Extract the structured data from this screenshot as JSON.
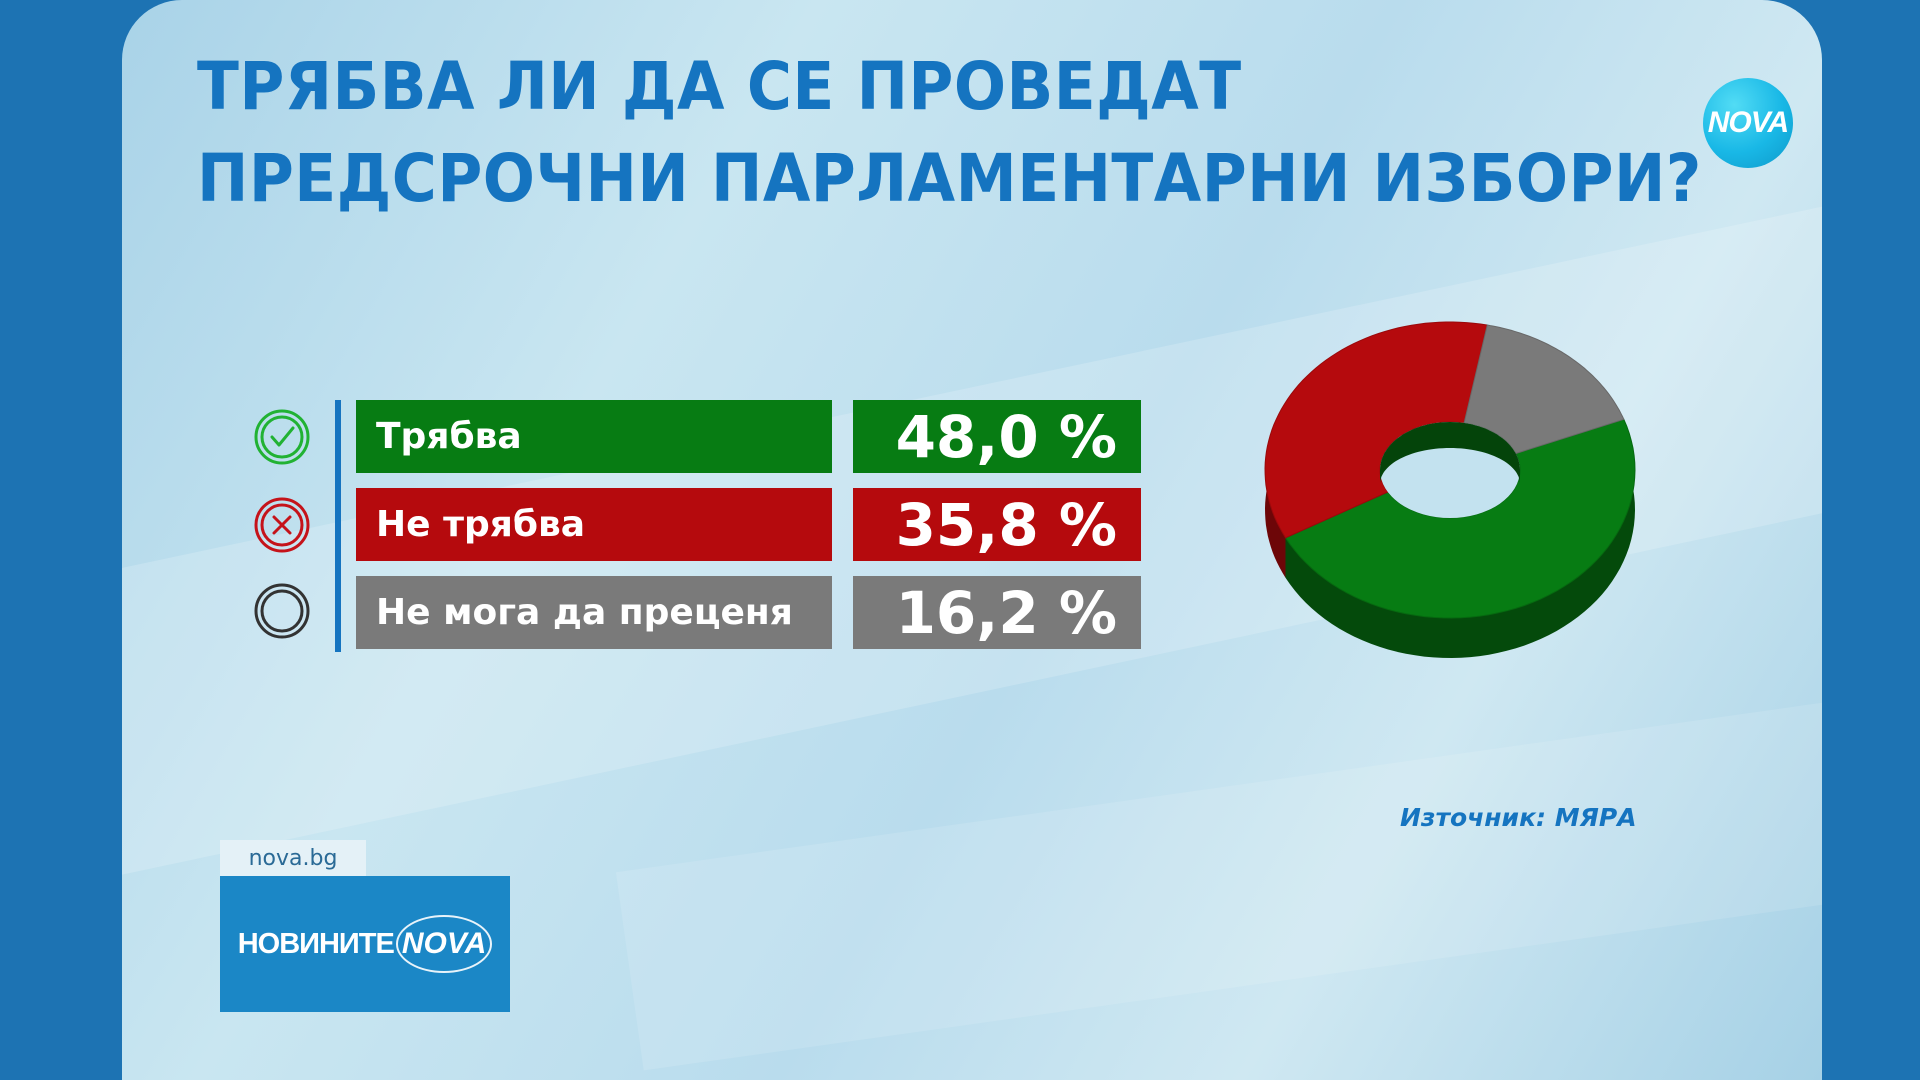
{
  "title": {
    "line1": "ТРЯБВА ЛИ ДА СЕ ПРОВЕДАТ",
    "line2": "ПРЕДСРОЧНИ ПАРЛАМЕНТАРНИ ИЗБОРИ?"
  },
  "logo": {
    "text": "NOVA"
  },
  "chart_data": {
    "type": "pie",
    "title": "ТРЯБВА ЛИ ДА СЕ ПРОВЕДАТ ПРЕДСРОЧНИ ПАРЛАМЕНТАРНИ ИЗБОРИ?",
    "categories": [
      "Трябва",
      "Не трябва",
      "Не мога да преценя"
    ],
    "values": [
      48.0,
      35.8,
      16.2
    ],
    "value_labels": [
      "48,0 %",
      "35,8 %",
      "16,2 %"
    ],
    "colors": [
      "#077c13",
      "#b50a0d",
      "#7a7a7a"
    ],
    "icons": [
      "check-circle-icon",
      "x-circle-icon",
      "empty-circle-icon"
    ],
    "style": "3d-donut"
  },
  "source": "Източник: МЯРА",
  "footer": {
    "site": "nova.bg",
    "brand": "НОВИНИТЕ",
    "brand_logo": "NOVA"
  }
}
